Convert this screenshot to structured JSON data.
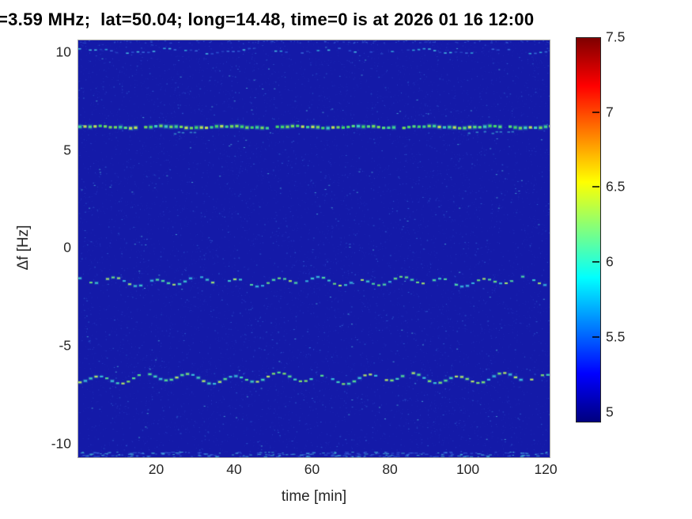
{
  "window": {
    "background": "#ffffff"
  },
  "chart_data": {
    "type": "heatmap",
    "subtype": "doppler-spectrogram",
    "title": "=3.59 MHz;  lat=50.04; long=14.48, time=0 is at 2026 01 16 12:00",
    "xlabel": "time [min]",
    "ylabel": "Δf [Hz]",
    "xlim": [
      0,
      121
    ],
    "ylim": [
      -10.7,
      10.6
    ],
    "xticks": [
      20,
      40,
      60,
      80,
      100,
      120
    ],
    "yticks": [
      10,
      5,
      0,
      -5,
      -10
    ],
    "grid": false,
    "legend": null,
    "colorbar": {
      "min": 4.94,
      "max": 7.5,
      "ticks": [
        7.5,
        7,
        6.5,
        6,
        5.5,
        5
      ],
      "colormap": "jet",
      "gradient_stops": [
        {
          "pos": 0,
          "color": "#7f0000"
        },
        {
          "pos": 12.5,
          "color": "#ff0000"
        },
        {
          "pos": 37.5,
          "color": "#ffff00"
        },
        {
          "pos": 62.5,
          "color": "#00ffff"
        },
        {
          "pos": 87.5,
          "color": "#0000ff"
        },
        {
          "pos": 100,
          "color": "#00007f"
        }
      ]
    },
    "background_power": 5.0,
    "background_color": "#141aa8",
    "traces": [
      {
        "name": "upper-faint-trace",
        "df_hz": 10.05,
        "power": 5.5,
        "wiggle": {
          "amp1": 0.1,
          "wl1": 21,
          "ph1": 0.8,
          "amp2": 0.05,
          "wl2": 7.5,
          "ph2": 2.1
        },
        "style": {
          "thickness": 1.6,
          "dash": 3.5,
          "gap": 3.2,
          "visibility": 0.8,
          "palette": [
            "#2a4fd0",
            "#3668d8",
            "#2f9fd8",
            "#243fc0",
            "#45b8e0"
          ],
          "halo": null
        }
      },
      {
        "name": "carrier-line",
        "df_hz": 6.17,
        "power": 6.3,
        "wiggle": {
          "amp1": 0.04,
          "wl1": 17,
          "ph1": 0.0,
          "amp2": 0.02,
          "wl2": 5,
          "ph2": 1.0
        },
        "style": {
          "thickness": 3.2,
          "dash": 4.2,
          "gap": 2.2,
          "visibility": 0.97,
          "palette": [
            "#3ecf92",
            "#44d46a",
            "#72d85c",
            "#b8e058",
            "#3cc8c0",
            "#57da7d"
          ],
          "halo": "rgba(60,200,170,0.22)"
        },
        "dips": [
          {
            "t0": 100,
            "t1": 113,
            "df_hz": 5.93
          },
          {
            "t0": 23.5,
            "t1": 31,
            "df_hz": 5.9
          }
        ]
      },
      {
        "name": "mid-trace",
        "df_hz": -1.72,
        "power": 6.0,
        "wiggle": {
          "amp1": 0.17,
          "wl1": 10.5,
          "ph1": 2.4,
          "amp2": 0.09,
          "wl2": 27,
          "ph2": 0.6
        },
        "style": {
          "thickness": 2.1,
          "dash": 4.0,
          "gap": 3.0,
          "visibility": 0.9,
          "palette": [
            "#35b0dc",
            "#3cc4cc",
            "#4fd49e",
            "#6ad97e",
            "#a6e06c"
          ],
          "halo": "rgba(60,170,220,0.18)"
        }
      },
      {
        "name": "lower-trace",
        "df_hz": -6.67,
        "power": 6.05,
        "wiggle": {
          "amp1": 0.2,
          "wl1": 11.5,
          "ph1": 5.1,
          "amp2": 0.1,
          "wl2": 30,
          "ph2": 3.3
        },
        "style": {
          "thickness": 2.3,
          "dash": 4.2,
          "gap": 2.6,
          "visibility": 0.93,
          "palette": [
            "#38b8d8",
            "#40ccbc",
            "#55d690",
            "#7ddc6e",
            "#b2e266"
          ],
          "halo": "rgba(60,190,200,0.2)"
        }
      }
    ],
    "noise": {
      "speckle_count": 9500,
      "bottom_band_count": 260,
      "top_band_count": 110
    }
  }
}
